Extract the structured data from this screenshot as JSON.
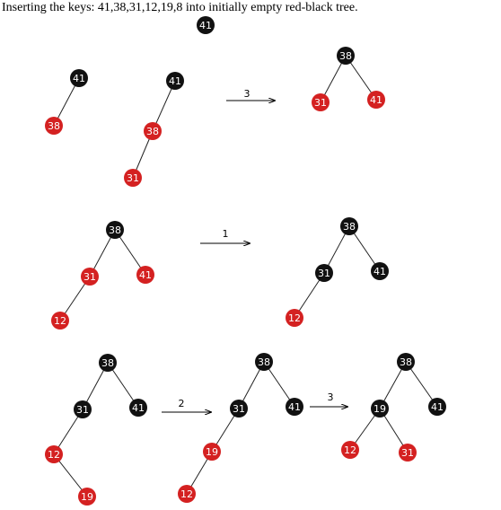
{
  "caption": "Inserting the keys: 41,38,31,12,19,8 into initially empty red-black tree.",
  "colors": {
    "red": "#d42121",
    "black": "#111111",
    "node_text": "#ffffff",
    "edge": "#222222"
  },
  "nodes": [
    {
      "id": "a1",
      "label": "41",
      "color": "black"
    },
    {
      "id": "b1",
      "label": "41",
      "color": "black"
    },
    {
      "id": "b2",
      "label": "38",
      "color": "red"
    },
    {
      "id": "c1",
      "label": "41",
      "color": "black"
    },
    {
      "id": "c2",
      "label": "38",
      "color": "red"
    },
    {
      "id": "c3",
      "label": "31",
      "color": "red"
    },
    {
      "id": "d1",
      "label": "38",
      "color": "black"
    },
    {
      "id": "d2",
      "label": "31",
      "color": "red"
    },
    {
      "id": "d3",
      "label": "41",
      "color": "red"
    },
    {
      "id": "e1",
      "label": "38",
      "color": "black"
    },
    {
      "id": "e2",
      "label": "31",
      "color": "red"
    },
    {
      "id": "e3",
      "label": "41",
      "color": "red"
    },
    {
      "id": "e4",
      "label": "12",
      "color": "red"
    },
    {
      "id": "f1",
      "label": "38",
      "color": "black"
    },
    {
      "id": "f2",
      "label": "31",
      "color": "black"
    },
    {
      "id": "f3",
      "label": "41",
      "color": "black"
    },
    {
      "id": "f4",
      "label": "12",
      "color": "red"
    },
    {
      "id": "g1",
      "label": "38",
      "color": "black"
    },
    {
      "id": "g2",
      "label": "31",
      "color": "black"
    },
    {
      "id": "g3",
      "label": "41",
      "color": "black"
    },
    {
      "id": "g4",
      "label": "12",
      "color": "red"
    },
    {
      "id": "g5",
      "label": "19",
      "color": "red"
    },
    {
      "id": "h1",
      "label": "38",
      "color": "black"
    },
    {
      "id": "h2",
      "label": "31",
      "color": "black"
    },
    {
      "id": "h3",
      "label": "41",
      "color": "black"
    },
    {
      "id": "h4",
      "label": "19",
      "color": "red"
    },
    {
      "id": "h5",
      "label": "12",
      "color": "red"
    },
    {
      "id": "i1",
      "label": "38",
      "color": "black"
    },
    {
      "id": "i2",
      "label": "19",
      "color": "black"
    },
    {
      "id": "i3",
      "label": "41",
      "color": "black"
    },
    {
      "id": "i4",
      "label": "12",
      "color": "red"
    },
    {
      "id": "i5",
      "label": "31",
      "color": "red"
    }
  ],
  "edges": [
    [
      "b1",
      "b2"
    ],
    [
      "c1",
      "c2"
    ],
    [
      "c2",
      "c3"
    ],
    [
      "d1",
      "d2"
    ],
    [
      "d1",
      "d3"
    ],
    [
      "e1",
      "e2"
    ],
    [
      "e1",
      "e3"
    ],
    [
      "e2",
      "e4"
    ],
    [
      "f1",
      "f2"
    ],
    [
      "f1",
      "f3"
    ],
    [
      "f2",
      "f4"
    ],
    [
      "g1",
      "g2"
    ],
    [
      "g1",
      "g3"
    ],
    [
      "g2",
      "g4"
    ],
    [
      "g4",
      "g5"
    ],
    [
      "h1",
      "h2"
    ],
    [
      "h1",
      "h3"
    ],
    [
      "h2",
      "h4"
    ],
    [
      "h4",
      "h5"
    ],
    [
      "i1",
      "i2"
    ],
    [
      "i1",
      "i3"
    ],
    [
      "i2",
      "i4"
    ],
    [
      "i2",
      "i5"
    ]
  ],
  "steps": [
    {
      "id": "s1",
      "label": "3"
    },
    {
      "id": "s2",
      "label": "1"
    },
    {
      "id": "s3",
      "label": "2"
    },
    {
      "id": "s4",
      "label": "3"
    }
  ]
}
